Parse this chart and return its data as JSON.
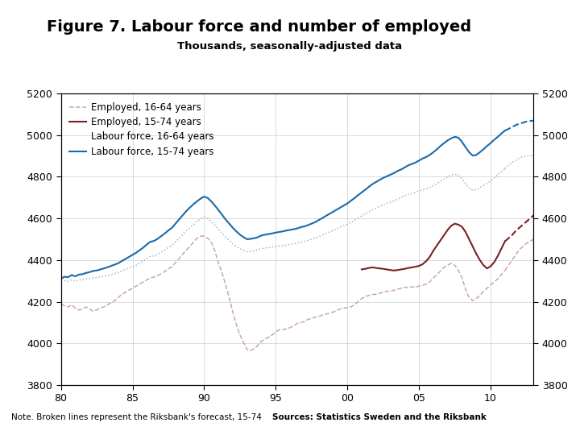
{
  "title": "Figure 7. Labour force and number of employed",
  "subtitle": "Thousands, seasonally-adjusted data",
  "note": "Note. Broken lines represent the Riksbank's forecast, 15-74",
  "source": "Sources: Statistics Sweden and the Riksbank",
  "bar_color": "#1a3a6b",
  "background_color": "#ffffff",
  "xlim": [
    1980,
    2013
  ],
  "ylim": [
    3800,
    5200
  ],
  "xticks": [
    1980,
    1985,
    1990,
    1995,
    2000,
    2005,
    2010
  ],
  "xticklabels": [
    "80",
    "85",
    "90",
    "95",
    "00",
    "05",
    "10"
  ],
  "yticks": [
    3800,
    4000,
    4200,
    4400,
    4600,
    4800,
    5000,
    5200
  ],
  "color_emp1664": "#c8a8a8",
  "color_emp1574": "#7a2020",
  "color_lf1664": "#90b8d8",
  "color_lf1574": "#1a6aaa",
  "employed_1664_x": [
    1980.0,
    1980.25,
    1980.5,
    1980.75,
    1981.0,
    1981.25,
    1981.5,
    1981.75,
    1982.0,
    1982.25,
    1982.5,
    1982.75,
    1983.0,
    1983.25,
    1983.5,
    1983.75,
    1984.0,
    1984.25,
    1984.5,
    1984.75,
    1985.0,
    1985.25,
    1985.5,
    1985.75,
    1986.0,
    1986.25,
    1986.5,
    1986.75,
    1987.0,
    1987.25,
    1987.5,
    1987.75,
    1988.0,
    1988.25,
    1988.5,
    1988.75,
    1989.0,
    1989.25,
    1989.5,
    1989.75,
    1990.0,
    1990.25,
    1990.5,
    1990.75,
    1991.0,
    1991.25,
    1991.5,
    1991.75,
    1992.0,
    1992.25,
    1992.5,
    1992.75,
    1993.0,
    1993.25,
    1993.5,
    1993.75,
    1994.0,
    1994.25,
    1994.5,
    1994.75,
    1995.0,
    1995.25,
    1995.5,
    1995.75,
    1996.0,
    1996.25,
    1996.5,
    1996.75,
    1997.0,
    1997.25,
    1997.5,
    1997.75,
    1998.0,
    1998.25,
    1998.5,
    1998.75,
    1999.0,
    1999.25,
    1999.5,
    1999.75,
    2000.0,
    2000.25,
    2000.5,
    2000.75,
    2001.0,
    2001.25,
    2001.5,
    2001.75,
    2002.0,
    2002.25,
    2002.5,
    2002.75,
    2003.0,
    2003.25,
    2003.5,
    2003.75,
    2004.0,
    2004.25,
    2004.5,
    2004.75,
    2005.0,
    2005.25,
    2005.5,
    2005.75,
    2006.0,
    2006.25,
    2006.5,
    2006.75,
    2007.0,
    2007.25,
    2007.5,
    2007.75,
    2008.0,
    2008.25,
    2008.5,
    2008.75,
    2009.0,
    2009.25,
    2009.5,
    2009.75,
    2010.0,
    2010.25,
    2010.5,
    2010.75,
    2011.0
  ],
  "employed_1664_y": [
    4190,
    4180,
    4175,
    4185,
    4170,
    4160,
    4165,
    4175,
    4165,
    4155,
    4160,
    4170,
    4175,
    4185,
    4195,
    4205,
    4220,
    4235,
    4245,
    4255,
    4265,
    4275,
    4285,
    4295,
    4305,
    4315,
    4318,
    4325,
    4335,
    4345,
    4358,
    4368,
    4388,
    4408,
    4428,
    4448,
    4465,
    4485,
    4505,
    4515,
    4515,
    4505,
    4485,
    4445,
    4385,
    4340,
    4280,
    4220,
    4150,
    4090,
    4040,
    4005,
    3970,
    3965,
    3975,
    3990,
    4010,
    4020,
    4030,
    4040,
    4055,
    4065,
    4065,
    4070,
    4075,
    4085,
    4095,
    4100,
    4105,
    4115,
    4120,
    4125,
    4130,
    4135,
    4140,
    4145,
    4150,
    4158,
    4165,
    4170,
    4170,
    4175,
    4185,
    4200,
    4215,
    4225,
    4230,
    4235,
    4235,
    4240,
    4245,
    4250,
    4250,
    4255,
    4260,
    4265,
    4270,
    4268,
    4272,
    4268,
    4275,
    4278,
    4285,
    4295,
    4315,
    4330,
    4348,
    4365,
    4375,
    4385,
    4375,
    4350,
    4315,
    4260,
    4220,
    4205,
    4215,
    4230,
    4250,
    4265,
    4280,
    4295,
    4310,
    4330,
    4350
  ],
  "employed_1664_dashed_x": [
    2011.0,
    2011.25,
    2011.5,
    2011.75,
    2012.0,
    2012.25,
    2012.5,
    2012.75,
    2013.0
  ],
  "employed_1664_dashed_y": [
    4350,
    4375,
    4400,
    4425,
    4450,
    4465,
    4480,
    4490,
    4500
  ],
  "employed_1574_x": [
    2001.0,
    2001.25,
    2001.5,
    2001.75,
    2002.0,
    2002.25,
    2002.5,
    2002.75,
    2003.0,
    2003.25,
    2003.5,
    2003.75,
    2004.0,
    2004.25,
    2004.5,
    2004.75,
    2005.0,
    2005.25,
    2005.5,
    2005.75,
    2006.0,
    2006.25,
    2006.5,
    2006.75,
    2007.0,
    2007.25,
    2007.5,
    2007.75,
    2008.0,
    2008.25,
    2008.5,
    2008.75,
    2009.0,
    2009.25,
    2009.5,
    2009.75,
    2010.0,
    2010.25,
    2010.5,
    2010.75,
    2011.0
  ],
  "employed_1574_y": [
    4355,
    4358,
    4362,
    4365,
    4362,
    4360,
    4358,
    4355,
    4352,
    4350,
    4352,
    4355,
    4358,
    4362,
    4365,
    4368,
    4372,
    4380,
    4395,
    4415,
    4445,
    4470,
    4495,
    4520,
    4545,
    4565,
    4575,
    4570,
    4560,
    4535,
    4500,
    4465,
    4430,
    4400,
    4375,
    4360,
    4370,
    4390,
    4420,
    4455,
    4490
  ],
  "employed_1574_dashed_x": [
    2011.0,
    2011.25,
    2011.5,
    2011.75,
    2012.0,
    2012.25,
    2012.5,
    2012.75,
    2013.0
  ],
  "employed_1574_dashed_y": [
    4490,
    4505,
    4520,
    4540,
    4555,
    4570,
    4585,
    4600,
    4615
  ],
  "lf_1664_x": [
    1980.0,
    1980.25,
    1980.5,
    1980.75,
    1981.0,
    1981.25,
    1981.5,
    1981.75,
    1982.0,
    1982.25,
    1982.5,
    1982.75,
    1983.0,
    1983.25,
    1983.5,
    1983.75,
    1984.0,
    1984.25,
    1984.5,
    1984.75,
    1985.0,
    1985.25,
    1985.5,
    1985.75,
    1986.0,
    1986.25,
    1986.5,
    1986.75,
    1987.0,
    1987.25,
    1987.5,
    1987.75,
    1988.0,
    1988.25,
    1988.5,
    1988.75,
    1989.0,
    1989.25,
    1989.5,
    1989.75,
    1990.0,
    1990.25,
    1990.5,
    1990.75,
    1991.0,
    1991.25,
    1991.5,
    1991.75,
    1992.0,
    1992.25,
    1992.5,
    1992.75,
    1993.0,
    1993.25,
    1993.5,
    1993.75,
    1994.0,
    1994.25,
    1994.5,
    1994.75,
    1995.0,
    1995.25,
    1995.5,
    1995.75,
    1996.0,
    1996.25,
    1996.5,
    1996.75,
    1997.0,
    1997.25,
    1997.5,
    1997.75,
    1998.0,
    1998.25,
    1998.5,
    1998.75,
    1999.0,
    1999.25,
    1999.5,
    1999.75,
    2000.0,
    2000.25,
    2000.5,
    2000.75,
    2001.0,
    2001.25,
    2001.5,
    2001.75,
    2002.0,
    2002.25,
    2002.5,
    2002.75,
    2003.0,
    2003.25,
    2003.5,
    2003.75,
    2004.0,
    2004.25,
    2004.5,
    2004.75,
    2005.0,
    2005.25,
    2005.5,
    2005.75,
    2006.0,
    2006.25,
    2006.5,
    2006.75,
    2007.0,
    2007.25,
    2007.5,
    2007.75,
    2008.0,
    2008.25,
    2008.5,
    2008.75,
    2009.0,
    2009.25,
    2009.5,
    2009.75,
    2010.0,
    2010.25,
    2010.5,
    2010.75,
    2011.0
  ],
  "lf_1664_y": [
    4295,
    4300,
    4298,
    4305,
    4298,
    4305,
    4305,
    4310,
    4310,
    4315,
    4315,
    4320,
    4322,
    4325,
    4330,
    4335,
    4340,
    4348,
    4355,
    4362,
    4368,
    4375,
    4385,
    4395,
    4408,
    4418,
    4420,
    4428,
    4438,
    4448,
    4460,
    4470,
    4488,
    4505,
    4522,
    4540,
    4555,
    4570,
    4585,
    4598,
    4608,
    4600,
    4585,
    4568,
    4548,
    4530,
    4510,
    4495,
    4478,
    4465,
    4455,
    4448,
    4440,
    4442,
    4445,
    4450,
    4455,
    4458,
    4460,
    4462,
    4465,
    4468,
    4468,
    4472,
    4475,
    4478,
    4482,
    4485,
    4490,
    4495,
    4500,
    4505,
    4512,
    4520,
    4528,
    4535,
    4542,
    4550,
    4558,
    4565,
    4572,
    4582,
    4592,
    4602,
    4612,
    4622,
    4632,
    4642,
    4650,
    4658,
    4665,
    4672,
    4678,
    4685,
    4692,
    4700,
    4708,
    4715,
    4720,
    4725,
    4732,
    4738,
    4742,
    4748,
    4758,
    4768,
    4778,
    4788,
    4800,
    4808,
    4812,
    4808,
    4790,
    4768,
    4748,
    4735,
    4738,
    4748,
    4758,
    4768,
    4780,
    4795,
    4810,
    4825,
    4840
  ],
  "lf_1664_dashed_x": [
    2011.0,
    2011.25,
    2011.5,
    2011.75,
    2012.0,
    2012.25,
    2012.5,
    2012.75,
    2013.0
  ],
  "lf_1664_dashed_y": [
    4840,
    4855,
    4870,
    4880,
    4890,
    4895,
    4900,
    4902,
    4905
  ],
  "lf_1574_x": [
    1980.0,
    1980.25,
    1980.5,
    1980.75,
    1981.0,
    1981.25,
    1981.5,
    1981.75,
    1982.0,
    1982.25,
    1982.5,
    1982.75,
    1983.0,
    1983.25,
    1983.5,
    1983.75,
    1984.0,
    1984.25,
    1984.5,
    1984.75,
    1985.0,
    1985.25,
    1985.5,
    1985.75,
    1986.0,
    1986.25,
    1986.5,
    1986.75,
    1987.0,
    1987.25,
    1987.5,
    1987.75,
    1988.0,
    1988.25,
    1988.5,
    1988.75,
    1989.0,
    1989.25,
    1989.5,
    1989.75,
    1990.0,
    1990.25,
    1990.5,
    1990.75,
    1991.0,
    1991.25,
    1991.5,
    1991.75,
    1992.0,
    1992.25,
    1992.5,
    1992.75,
    1993.0,
    1993.25,
    1993.5,
    1993.75,
    1994.0,
    1994.25,
    1994.5,
    1994.75,
    1995.0,
    1995.25,
    1995.5,
    1995.75,
    1996.0,
    1996.25,
    1996.5,
    1996.75,
    1997.0,
    1997.25,
    1997.5,
    1997.75,
    1998.0,
    1998.25,
    1998.5,
    1998.75,
    1999.0,
    1999.25,
    1999.5,
    1999.75,
    2000.0,
    2000.25,
    2000.5,
    2000.75,
    2001.0,
    2001.25,
    2001.5,
    2001.75,
    2002.0,
    2002.25,
    2002.5,
    2002.75,
    2003.0,
    2003.25,
    2003.5,
    2003.75,
    2004.0,
    2004.25,
    2004.5,
    2004.75,
    2005.0,
    2005.25,
    2005.5,
    2005.75,
    2006.0,
    2006.25,
    2006.5,
    2006.75,
    2007.0,
    2007.25,
    2007.5,
    2007.75,
    2008.0,
    2008.25,
    2008.5,
    2008.75,
    2009.0,
    2009.25,
    2009.5,
    2009.75,
    2010.0,
    2010.25,
    2010.5,
    2010.75,
    2011.0
  ],
  "lf_1574_y": [
    4310,
    4320,
    4318,
    4328,
    4322,
    4330,
    4332,
    4338,
    4342,
    4348,
    4350,
    4355,
    4360,
    4365,
    4372,
    4378,
    4385,
    4395,
    4405,
    4415,
    4425,
    4435,
    4448,
    4460,
    4475,
    4488,
    4492,
    4502,
    4515,
    4528,
    4542,
    4555,
    4575,
    4595,
    4615,
    4635,
    4652,
    4668,
    4682,
    4695,
    4705,
    4698,
    4682,
    4662,
    4640,
    4618,
    4595,
    4575,
    4555,
    4538,
    4522,
    4510,
    4500,
    4502,
    4505,
    4510,
    4518,
    4522,
    4525,
    4528,
    4532,
    4535,
    4538,
    4542,
    4545,
    4548,
    4552,
    4558,
    4562,
    4568,
    4575,
    4582,
    4592,
    4602,
    4612,
    4622,
    4632,
    4642,
    4652,
    4662,
    4672,
    4685,
    4698,
    4712,
    4725,
    4738,
    4752,
    4765,
    4775,
    4785,
    4795,
    4802,
    4810,
    4818,
    4828,
    4835,
    4845,
    4855,
    4862,
    4868,
    4878,
    4888,
    4895,
    4905,
    4918,
    4932,
    4948,
    4962,
    4975,
    4985,
    4992,
    4988,
    4968,
    4942,
    4918,
    4902,
    4905,
    4918,
    4932,
    4948,
    4962,
    4978,
    4992,
    5008,
    5022
  ],
  "lf_1574_dashed_x": [
    2011.0,
    2011.25,
    2011.5,
    2011.75,
    2012.0,
    2012.25,
    2012.5,
    2012.75,
    2013.0
  ],
  "lf_1574_dashed_y": [
    5022,
    5030,
    5040,
    5048,
    5055,
    5060,
    5065,
    5068,
    5070
  ]
}
